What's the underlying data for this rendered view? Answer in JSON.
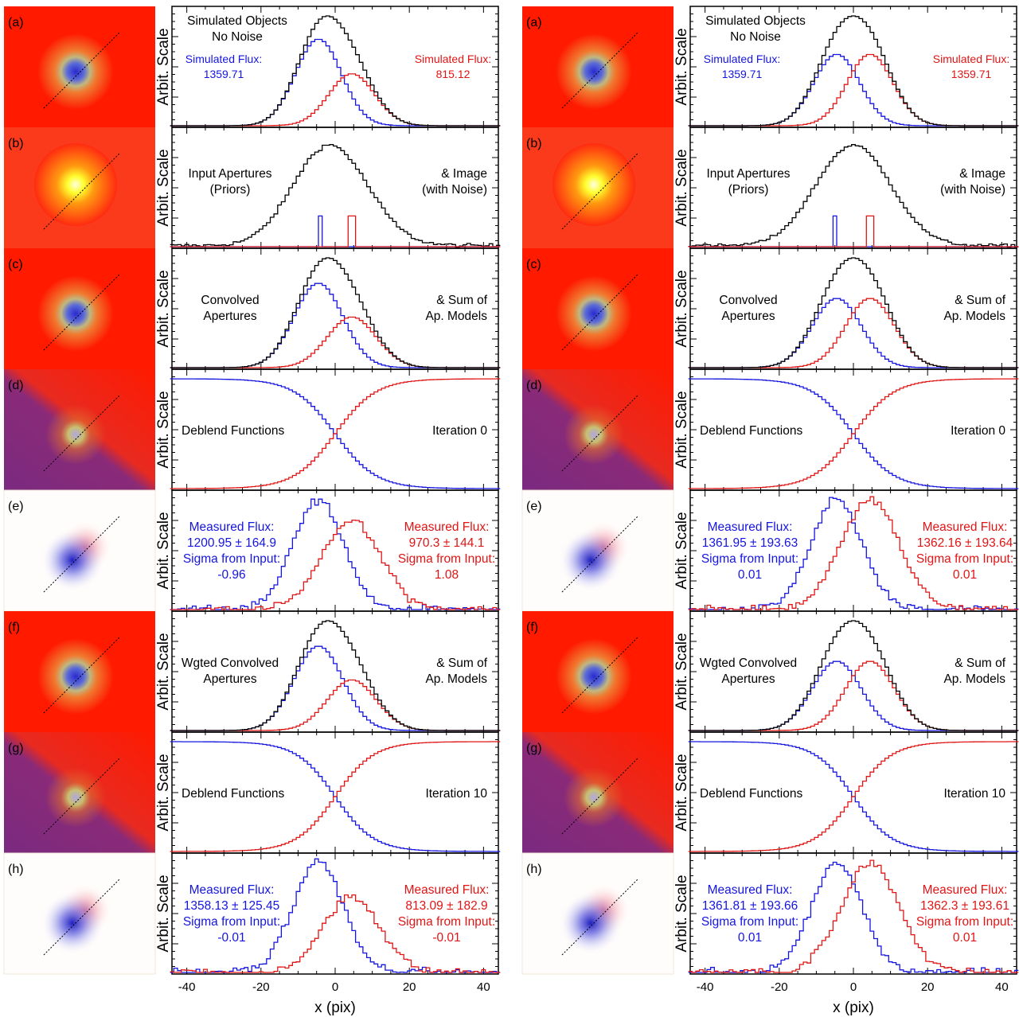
{
  "figure": {
    "ylabel": "Arbit. Scale",
    "xlabel": "x (pix)",
    "xticks": [
      -40,
      -20,
      0,
      20,
      40
    ],
    "colors": {
      "blue": "#1515e0",
      "red": "#e01515",
      "black": "#000000"
    },
    "columns": [
      {
        "panels": [
          {
            "label": "(a)",
            "left_text": [
              "Simulated Objects",
              "No Noise"
            ],
            "right_text": []
          },
          {
            "label": "(b)",
            "left_text": [
              "Input Apertures",
              "(Priors)"
            ],
            "right_text": [
              "& Image",
              "(with Noise)"
            ]
          },
          {
            "label": "(c)",
            "left_text": [
              "Convolved",
              "Apertures"
            ],
            "right_text": [
              "& Sum of",
              "Ap. Models"
            ]
          },
          {
            "label": "(d)",
            "left_text": [
              "Deblend Functions"
            ],
            "right_text": [
              "Iteration 0"
            ]
          },
          {
            "label": "(e)",
            "left_text": [
              "Measured Flux:",
              "1200.95 ± 164.9",
              "Sigma from Input:",
              "-0.96"
            ],
            "right_text": [
              "Measured Flux:",
              "970.3 ± 144.1",
              "Sigma from Input:",
              "1.08"
            ]
          },
          {
            "label": "(f)",
            "left_text": [
              "Wgted Convolved",
              "Apertures"
            ],
            "right_text": [
              "& Sum of",
              "Ap. Models"
            ]
          },
          {
            "label": "(g)",
            "left_text": [
              "Deblend Functions"
            ],
            "right_text": [
              "Iteration 10"
            ]
          },
          {
            "label": "(h)",
            "left_text": [
              "Measured Flux:",
              "1358.13 ± 125.45",
              "Sigma from Input:",
              "-0.01"
            ],
            "right_text": [
              "Measured Flux:",
              "813.09 ± 182.9",
              "Sigma from Input:",
              "-0.01"
            ]
          }
        ],
        "simulated_flux_label": "Simulated Flux:",
        "simulated_flux_blue": "1359.71",
        "simulated_flux_red": "815.12"
      },
      {
        "panels": [
          {
            "label": "(a)",
            "left_text": [
              "Simulated Objects",
              "No Noise"
            ],
            "right_text": []
          },
          {
            "label": "(b)",
            "left_text": [
              "Input Apertures",
              "(Priors)"
            ],
            "right_text": [
              "& Image",
              "(with Noise)"
            ]
          },
          {
            "label": "(c)",
            "left_text": [
              "Convolved",
              "Apertures"
            ],
            "right_text": [
              "& Sum of",
              "Ap. Models"
            ]
          },
          {
            "label": "(d)",
            "left_text": [
              "Deblend Functions"
            ],
            "right_text": [
              "Iteration 0"
            ]
          },
          {
            "label": "(e)",
            "left_text": [
              "Measured Flux:",
              "1361.95 ± 193.63",
              "Sigma from Input:",
              "0.01"
            ],
            "right_text": [
              "Measured Flux:",
              "1362.16 ± 193.64",
              "Sigma from Input:",
              "0.01"
            ]
          },
          {
            "label": "(f)",
            "left_text": [
              "Wgted Convolved",
              "Apertures"
            ],
            "right_text": [
              "& Sum of",
              "Ap. Models"
            ]
          },
          {
            "label": "(g)",
            "left_text": [
              "Deblend Functions"
            ],
            "right_text": [
              "Iteration 10"
            ]
          },
          {
            "label": "(h)",
            "left_text": [
              "Measured Flux:",
              "1361.81 ± 193.66",
              "Sigma from Input:",
              "0.01"
            ],
            "right_text": [
              "Measured Flux:",
              "1362.3 ± 193.61",
              "Sigma from Input:",
              "0.01"
            ]
          }
        ],
        "simulated_flux_label": "Simulated Flux:",
        "simulated_flux_blue": "1359.71",
        "simulated_flux_red": "1359.71"
      }
    ]
  },
  "chart_data": [
    {
      "type": "line",
      "column": "left",
      "xlim": [
        -44,
        44
      ],
      "sources": [
        {
          "color": "blue",
          "center": -4.5,
          "flux": 1359.71
        },
        {
          "color": "red",
          "center": 4.5,
          "flux": 815.12
        }
      ],
      "panels": [
        {
          "label": "(a)",
          "curves": [
            "blue_profile",
            "red_profile",
            "sum_profile"
          ]
        },
        {
          "label": "(b)",
          "curves": [
            "noisy_image",
            "blue_prior_aperture",
            "red_prior_aperture"
          ]
        },
        {
          "label": "(c)",
          "curves": [
            "blue_convolved",
            "red_convolved",
            "sum"
          ]
        },
        {
          "label": "(d)",
          "curves": [
            "blue_deblend",
            "red_deblend"
          ],
          "iteration": 0
        },
        {
          "label": "(e)",
          "measured_flux": {
            "blue": [
              1200.95,
              164.9
            ],
            "red": [
              970.3,
              144.1
            ]
          },
          "sigma_from_input": {
            "blue": -0.96,
            "red": 1.08
          }
        },
        {
          "label": "(f)",
          "curves": [
            "blue_weighted",
            "red_weighted",
            "sum"
          ]
        },
        {
          "label": "(g)",
          "curves": [
            "blue_deblend",
            "red_deblend"
          ],
          "iteration": 10
        },
        {
          "label": "(h)",
          "measured_flux": {
            "blue": [
              1358.13,
              125.45
            ],
            "red": [
              813.09,
              182.9
            ]
          },
          "sigma_from_input": {
            "blue": -0.01,
            "red": -0.01
          }
        }
      ]
    },
    {
      "type": "line",
      "column": "right",
      "xlim": [
        -44,
        44
      ],
      "sources": [
        {
          "color": "blue",
          "center": -4.5,
          "flux": 1359.71
        },
        {
          "color": "red",
          "center": 4.5,
          "flux": 1359.71
        }
      ],
      "panels": [
        {
          "label": "(a)",
          "curves": [
            "blue_profile",
            "red_profile",
            "sum_profile"
          ]
        },
        {
          "label": "(b)",
          "curves": [
            "noisy_image",
            "blue_prior_aperture",
            "red_prior_aperture"
          ]
        },
        {
          "label": "(c)",
          "curves": [
            "blue_convolved",
            "red_convolved",
            "sum"
          ]
        },
        {
          "label": "(d)",
          "curves": [
            "blue_deblend",
            "red_deblend"
          ],
          "iteration": 0
        },
        {
          "label": "(e)",
          "measured_flux": {
            "blue": [
              1361.95,
              193.63
            ],
            "red": [
              1362.16,
              193.64
            ]
          },
          "sigma_from_input": {
            "blue": 0.01,
            "red": 0.01
          }
        },
        {
          "label": "(f)",
          "curves": [
            "blue_weighted",
            "red_weighted",
            "sum"
          ]
        },
        {
          "label": "(g)",
          "curves": [
            "blue_deblend",
            "red_deblend"
          ],
          "iteration": 10
        },
        {
          "label": "(h)",
          "measured_flux": {
            "blue": [
              1361.81,
              193.66
            ],
            "red": [
              1362.3,
              193.61
            ]
          },
          "sigma_from_input": {
            "blue": 0.01,
            "red": 0.01
          }
        }
      ]
    }
  ]
}
